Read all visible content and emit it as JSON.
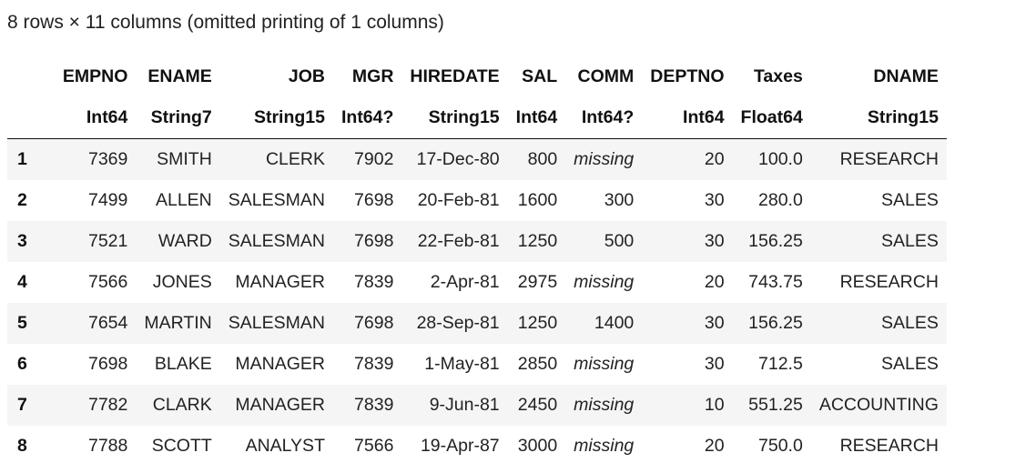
{
  "summary": "8 rows × 11 columns (omitted printing of 1 columns)",
  "columns": [
    {
      "name": "EMPNO",
      "type": "Int64"
    },
    {
      "name": "ENAME",
      "type": "String7"
    },
    {
      "name": "JOB",
      "type": "String15"
    },
    {
      "name": "MGR",
      "type": "Int64?"
    },
    {
      "name": "HIREDATE",
      "type": "String15"
    },
    {
      "name": "SAL",
      "type": "Int64"
    },
    {
      "name": "COMM",
      "type": "Int64?"
    },
    {
      "name": "DEPTNO",
      "type": "Int64"
    },
    {
      "name": "Taxes",
      "type": "Float64"
    },
    {
      "name": "DNAME",
      "type": "String15"
    }
  ],
  "rows": [
    {
      "index": "1",
      "cells": [
        "7369",
        "SMITH",
        "CLERK",
        "7902",
        "17-Dec-80",
        "800",
        "missing",
        "20",
        "100.0",
        "RESEARCH"
      ]
    },
    {
      "index": "2",
      "cells": [
        "7499",
        "ALLEN",
        "SALESMAN",
        "7698",
        "20-Feb-81",
        "1600",
        "300",
        "30",
        "280.0",
        "SALES"
      ]
    },
    {
      "index": "3",
      "cells": [
        "7521",
        "WARD",
        "SALESMAN",
        "7698",
        "22-Feb-81",
        "1250",
        "500",
        "30",
        "156.25",
        "SALES"
      ]
    },
    {
      "index": "4",
      "cells": [
        "7566",
        "JONES",
        "MANAGER",
        "7839",
        "2-Apr-81",
        "2975",
        "missing",
        "20",
        "743.75",
        "RESEARCH"
      ]
    },
    {
      "index": "5",
      "cells": [
        "7654",
        "MARTIN",
        "SALESMAN",
        "7698",
        "28-Sep-81",
        "1250",
        "1400",
        "30",
        "156.25",
        "SALES"
      ]
    },
    {
      "index": "6",
      "cells": [
        "7698",
        "BLAKE",
        "MANAGER",
        "7839",
        "1-May-81",
        "2850",
        "missing",
        "30",
        "712.5",
        "SALES"
      ]
    },
    {
      "index": "7",
      "cells": [
        "7782",
        "CLARK",
        "MANAGER",
        "7839",
        "9-Jun-81",
        "2450",
        "missing",
        "10",
        "551.25",
        "ACCOUNTING"
      ]
    },
    {
      "index": "8",
      "cells": [
        "7788",
        "SCOTT",
        "ANALYST",
        "7566",
        "19-Apr-87",
        "3000",
        "missing",
        "20",
        "750.0",
        "RESEARCH"
      ]
    }
  ],
  "missing_marker": "missing"
}
